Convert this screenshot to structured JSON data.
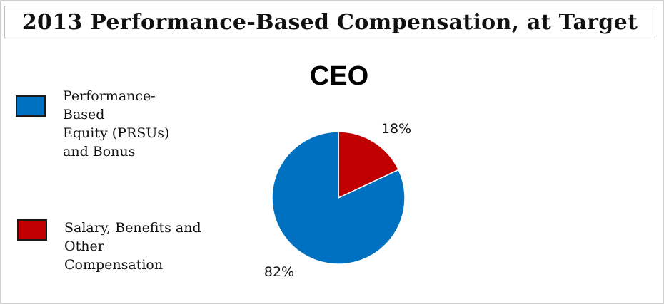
{
  "header": {
    "title": "2013 Performance-Based Compensation, at Target"
  },
  "chart_data": {
    "type": "pie",
    "title": "CEO",
    "slices": [
      {
        "label": "Salary, Benefits and\nOther\nCompensation",
        "value": 18,
        "display": "18%",
        "color": "#c00000"
      },
      {
        "label": "Performance-\nBased\nEquity (PRSUs)\nand Bonus",
        "value": 82,
        "display": "82%",
        "color": "#0070c0"
      }
    ],
    "legend": {
      "position": "left",
      "items": [
        {
          "label": "Performance-\nBased\nEquity (PRSUs)\nand Bonus",
          "color": "#0070c0"
        },
        {
          "label": "Salary, Benefits and\nOther\nCompensation",
          "color": "#c00000"
        }
      ]
    }
  }
}
